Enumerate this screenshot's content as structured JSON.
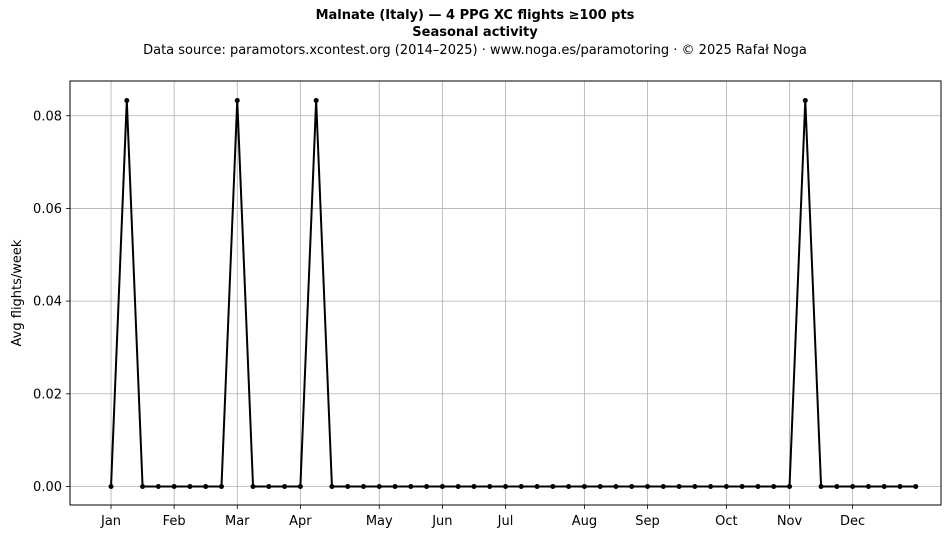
{
  "chart_data": {
    "type": "line",
    "title": "Malnate (Italy)  —  4 PPG XC flights ≥100 pts",
    "subtitle": "Seasonal activity",
    "source_note": "Data source: paramotors.xcontest.org (2014–2025)  ·  www.noga.es/paramotoring  ·  © 2025 Rafał Noga",
    "xlabel": "",
    "ylabel": "Avg flights/week",
    "grid": true,
    "ylim": [
      -0.004,
      0.0875
    ],
    "xlim": [
      -2.6,
      52.6
    ],
    "yticks": [
      0.0,
      0.02,
      0.04,
      0.06,
      0.08
    ],
    "ytick_labels": [
      "0.00",
      "0.02",
      "0.04",
      "0.06",
      "0.08"
    ],
    "xticks": [
      0,
      4,
      8,
      12,
      17,
      21,
      25,
      30,
      34,
      39,
      43,
      47
    ],
    "xtick_labels": [
      "Jan",
      "Feb",
      "Mar",
      "Apr",
      "May",
      "Jun",
      "Jul",
      "Aug",
      "Sep",
      "Oct",
      "Nov",
      "Dec"
    ],
    "series": [
      {
        "name": "",
        "color": "#000000",
        "x": [
          0,
          1,
          2,
          3,
          4,
          5,
          6,
          7,
          8,
          9,
          10,
          11,
          12,
          13,
          14,
          15,
          16,
          17,
          18,
          19,
          20,
          21,
          22,
          23,
          24,
          25,
          26,
          27,
          28,
          29,
          30,
          31,
          32,
          33,
          34,
          35,
          36,
          37,
          38,
          39,
          40,
          41,
          42,
          43,
          44,
          45,
          46,
          47,
          48,
          49,
          50,
          51
        ],
        "values": [
          0,
          0.0833,
          0,
          0,
          0,
          0,
          0,
          0,
          0.0833,
          0,
          0,
          0,
          0,
          0.0833,
          0,
          0,
          0,
          0,
          0,
          0,
          0,
          0,
          0,
          0,
          0,
          0,
          0,
          0,
          0,
          0,
          0,
          0,
          0,
          0,
          0,
          0,
          0,
          0,
          0,
          0,
          0,
          0,
          0,
          0,
          0.0833,
          0,
          0,
          0,
          0,
          0,
          0,
          0
        ]
      }
    ]
  }
}
